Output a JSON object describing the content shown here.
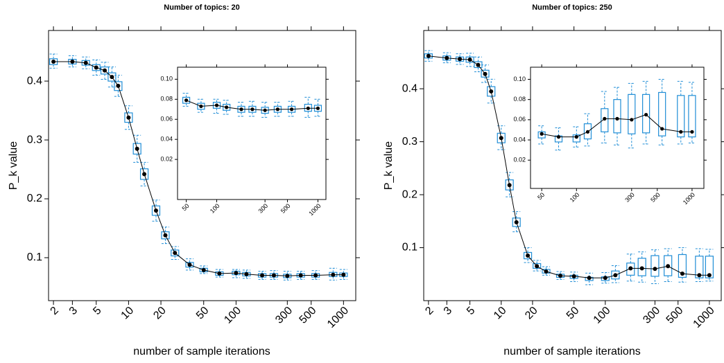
{
  "chart_data": [
    {
      "type": "box",
      "title": "Number of topics: 20",
      "xlabel": "number of sample iterations",
      "ylabel": "P_k value",
      "log_x": true,
      "color": "#1f8dd6",
      "x": [
        2,
        3,
        4,
        5,
        6,
        7,
        8,
        10,
        12,
        14,
        18,
        22,
        27,
        37,
        50,
        70,
        100,
        125,
        175,
        225,
        300,
        400,
        550,
        800,
        1000
      ],
      "median": [
        0.433,
        0.433,
        0.431,
        0.423,
        0.418,
        0.407,
        0.392,
        0.338,
        0.285,
        0.242,
        0.18,
        0.138,
        0.108,
        0.088,
        0.079,
        0.073,
        0.074,
        0.072,
        0.07,
        0.07,
        0.069,
        0.07,
        0.07,
        0.071,
        0.071
      ],
      "q1": [
        0.428,
        0.429,
        0.427,
        0.418,
        0.412,
        0.4,
        0.384,
        0.33,
        0.276,
        0.233,
        0.172,
        0.132,
        0.103,
        0.084,
        0.076,
        0.07,
        0.071,
        0.069,
        0.067,
        0.067,
        0.066,
        0.067,
        0.067,
        0.068,
        0.068
      ],
      "q3": [
        0.438,
        0.437,
        0.435,
        0.428,
        0.424,
        0.414,
        0.399,
        0.346,
        0.294,
        0.251,
        0.188,
        0.144,
        0.113,
        0.092,
        0.082,
        0.076,
        0.077,
        0.075,
        0.073,
        0.073,
        0.072,
        0.073,
        0.073,
        0.075,
        0.074
      ],
      "low": [
        0.422,
        0.424,
        0.421,
        0.41,
        0.403,
        0.39,
        0.374,
        0.318,
        0.262,
        0.222,
        0.162,
        0.124,
        0.097,
        0.079,
        0.073,
        0.067,
        0.066,
        0.065,
        0.063,
        0.063,
        0.062,
        0.063,
        0.063,
        0.062,
        0.063
      ],
      "high": [
        0.446,
        0.443,
        0.441,
        0.436,
        0.432,
        0.424,
        0.41,
        0.358,
        0.308,
        0.262,
        0.198,
        0.152,
        0.119,
        0.098,
        0.086,
        0.08,
        0.08,
        0.079,
        0.077,
        0.078,
        0.077,
        0.077,
        0.078,
        0.082,
        0.08
      ],
      "xlim": [
        1.8,
        1300
      ],
      "ylim": [
        0.027,
        0.486
      ],
      "xticks": [
        2,
        3,
        5,
        10,
        20,
        50,
        100,
        300,
        500,
        1000
      ],
      "yticks": [
        0.1,
        0.2,
        0.3,
        0.4
      ],
      "inset": {
        "xlim": [
          41,
          1200
        ],
        "ylim": [
          -0.02,
          0.112
        ],
        "xticks": [
          50,
          100,
          300,
          500,
          1000
        ],
        "yticks": [
          0.02,
          0.04,
          0.06,
          0.08,
          {
            "value": 0.1,
            "label": "0.10"
          }
        ]
      }
    },
    {
      "type": "box",
      "title": "Number of topics: 250",
      "xlabel": "number of sample iterations",
      "ylabel": "P_k value",
      "log_x": true,
      "color": "#1f8dd6",
      "x": [
        2,
        3,
        4,
        5,
        6,
        7,
        8,
        10,
        12,
        14,
        18,
        22,
        27,
        37,
        50,
        70,
        100,
        125,
        175,
        225,
        300,
        400,
        550,
        800,
        1000
      ],
      "median": [
        0.462,
        0.458,
        0.456,
        0.455,
        0.445,
        0.428,
        0.395,
        0.307,
        0.218,
        0.148,
        0.085,
        0.065,
        0.055,
        0.047,
        0.046,
        0.043,
        0.043,
        0.048,
        0.061,
        0.061,
        0.06,
        0.065,
        0.051,
        0.048,
        0.048
      ],
      "q1": [
        0.458,
        0.454,
        0.452,
        0.45,
        0.44,
        0.422,
        0.386,
        0.298,
        0.209,
        0.14,
        0.079,
        0.061,
        0.052,
        0.044,
        0.042,
        0.038,
        0.038,
        0.041,
        0.048,
        0.047,
        0.046,
        0.047,
        0.044,
        0.043,
        0.043
      ],
      "q3": [
        0.466,
        0.462,
        0.46,
        0.46,
        0.451,
        0.435,
        0.404,
        0.316,
        0.228,
        0.156,
        0.091,
        0.07,
        0.059,
        0.05,
        0.048,
        0.044,
        0.045,
        0.056,
        0.071,
        0.08,
        0.085,
        0.085,
        0.087,
        0.084,
        0.084
      ],
      "low": [
        0.452,
        0.449,
        0.446,
        0.442,
        0.432,
        0.412,
        0.373,
        0.285,
        0.196,
        0.13,
        0.072,
        0.056,
        0.048,
        0.04,
        0.036,
        0.03,
        0.033,
        0.034,
        0.037,
        0.035,
        0.032,
        0.036,
        0.035,
        0.036,
        0.037
      ],
      "high": [
        0.472,
        0.468,
        0.466,
        0.467,
        0.46,
        0.445,
        0.418,
        0.33,
        0.242,
        0.168,
        0.1,
        0.076,
        0.064,
        0.055,
        0.054,
        0.052,
        0.053,
        0.066,
        0.088,
        0.092,
        0.096,
        0.098,
        0.1,
        0.098,
        0.097
      ],
      "xlim": [
        1.8,
        1300
      ],
      "ylim": [
        0,
        0.51
      ],
      "xticks": [
        2,
        3,
        5,
        10,
        20,
        50,
        100,
        300,
        500,
        1000
      ],
      "yticks": [
        0.1,
        0.2,
        0.3,
        0.4
      ],
      "inset": {
        "xlim": [
          40,
          1266
        ],
        "ylim": [
          -0.008,
          0.112
        ],
        "xticks": [
          50,
          100,
          300,
          500,
          1000
        ],
        "yticks": [
          0.02,
          0.04,
          0.06,
          0.08,
          {
            "value": 0.1,
            "label": "0.10"
          }
        ]
      }
    }
  ]
}
